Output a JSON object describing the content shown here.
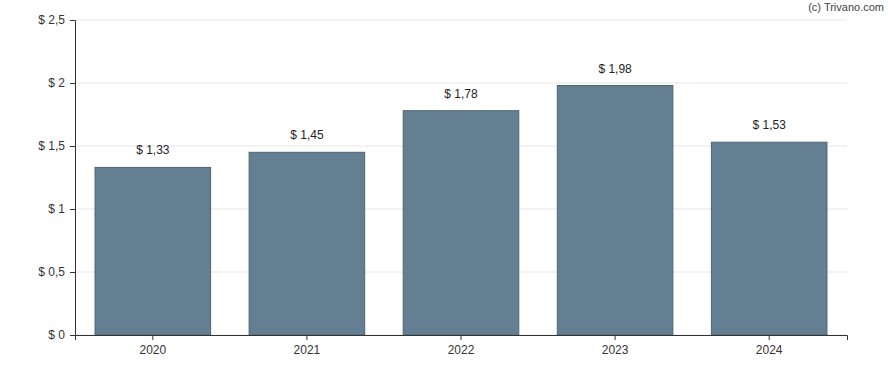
{
  "chart_data": {
    "type": "bar",
    "annotations": [
      "(c) Trivano.com"
    ],
    "categories": [
      "2020",
      "2021",
      "2022",
      "2023",
      "2024"
    ],
    "values": [
      1.33,
      1.45,
      1.78,
      1.98,
      1.53
    ],
    "value_labels": [
      "$ 1,33",
      "$ 1,45",
      "$ 1,78",
      "$ 1,98",
      "$ 1,53"
    ],
    "color": "#647f91",
    "ylim": [
      0,
      2.5
    ],
    "yticks": [
      {
        "value": 0,
        "label": "$ 0"
      },
      {
        "value": 0.5,
        "label": "$ 0,5"
      },
      {
        "value": 1,
        "label": "$ 1"
      },
      {
        "value": 1.5,
        "label": "$ 1,5"
      },
      {
        "value": 2,
        "label": "$ 2"
      },
      {
        "value": 2.5,
        "label": "$ 2,5"
      }
    ],
    "grid": true,
    "data_labels": true
  }
}
